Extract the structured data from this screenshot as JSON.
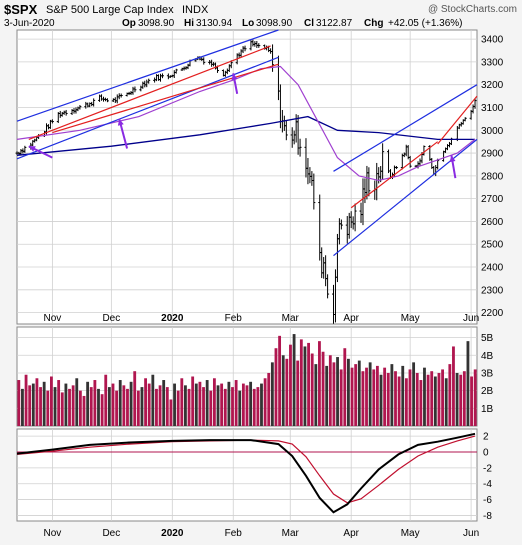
{
  "header": {
    "symbol": "$SPX",
    "name": "S&P 500 Large Cap Index",
    "exchange": "INDX",
    "credit": "@ StockCharts.com",
    "date": "3-Jun-2020",
    "open_label": "Op",
    "open_value": "3098.90",
    "high_label": "Hi",
    "high_value": "3130.94",
    "low_label": "Lo",
    "low_value": "3098.90",
    "close_label": "Cl",
    "close_value": "3122.87",
    "change_label": "Chg",
    "change_value": "+42.05 (+1.36%)"
  },
  "chart_data": [
    {
      "type": "line",
      "panel": "price",
      "x_ticks": [
        "Nov",
        "Dec",
        "2020",
        "Feb",
        "Mar",
        "Apr",
        "May",
        "Jun"
      ],
      "y_ticks": [
        2200,
        2300,
        2400,
        2500,
        2600,
        2700,
        2800,
        2900,
        3000,
        3100,
        3200,
        3300,
        3400
      ],
      "ylim": [
        2150,
        3440
      ],
      "close_series": {
        "dates": [
          "2019-10-14",
          "2019-10-21",
          "2019-10-28",
          "2019-11-04",
          "2019-11-11",
          "2019-11-18",
          "2019-11-25",
          "2019-12-02",
          "2019-12-09",
          "2019-12-16",
          "2019-12-23",
          "2019-12-30",
          "2020-01-06",
          "2020-01-13",
          "2020-01-20",
          "2020-01-27",
          "2020-02-03",
          "2020-02-10",
          "2020-02-17",
          "2020-02-20",
          "2020-02-24",
          "2020-02-28",
          "2020-03-03",
          "2020-03-06",
          "2020-03-10",
          "2020-03-13",
          "2020-03-16",
          "2020-03-18",
          "2020-03-20",
          "2020-03-23",
          "2020-03-26",
          "2020-03-31",
          "2020-04-06",
          "2020-04-09",
          "2020-04-13",
          "2020-04-17",
          "2020-04-21",
          "2020-04-24",
          "2020-04-29",
          "2020-05-01",
          "2020-05-06",
          "2020-05-08",
          "2020-05-13",
          "2020-05-15",
          "2020-05-19",
          "2020-05-22",
          "2020-05-27",
          "2020-05-29",
          "2020-06-03"
        ],
        "values": [
          2900,
          2940,
          3000,
          3070,
          3090,
          3110,
          3140,
          3130,
          3160,
          3200,
          3230,
          3240,
          3270,
          3320,
          3300,
          3250,
          3330,
          3380,
          3360,
          3340,
          3130,
          2960,
          3000,
          2960,
          2830,
          2700,
          2420,
          2420,
          2300,
          2240,
          2600,
          2580,
          2660,
          2780,
          2780,
          2860,
          2800,
          2840,
          2920,
          2840,
          2860,
          2930,
          2820,
          2860,
          2920,
          2960,
          3040,
          3050,
          3120
        ]
      },
      "ma50": {
        "dates": [
          "2019-10-14",
          "2019-11-15",
          "2019-12-15",
          "2020-01-15",
          "2020-02-01",
          "2020-02-15",
          "2020-02-25",
          "2020-03-05",
          "2020-03-15",
          "2020-03-25",
          "2020-04-05",
          "2020-04-15",
          "2020-04-25",
          "2020-05-05",
          "2020-05-15",
          "2020-05-25",
          "2020-06-03"
        ],
        "values": [
          2960,
          3000,
          3060,
          3170,
          3220,
          3270,
          3280,
          3200,
          3040,
          2880,
          2800,
          2780,
          2800,
          2840,
          2870,
          2900,
          2960
        ]
      },
      "ma200": {
        "dates": [
          "2019-10-14",
          "2019-12-01",
          "2020-01-15",
          "2020-02-20",
          "2020-03-10",
          "2020-03-25",
          "2020-04-15",
          "2020-05-15",
          "2020-06-03"
        ],
        "values": [
          2890,
          2930,
          2980,
          3030,
          3060,
          3000,
          2990,
          2960,
          2960
        ]
      },
      "annotations": [
        "blue channel lines",
        "red trend lines",
        "purple arrows"
      ]
    },
    {
      "type": "bar",
      "panel": "volume",
      "y_ticks": [
        "1B",
        "2B",
        "3B",
        "4B",
        "5B"
      ],
      "ylim": [
        0,
        5.6
      ],
      "values": [
        2.6,
        2.1,
        2.9,
        2.3,
        2.4,
        2.7,
        2.2,
        2.5,
        2.0,
        2.8,
        2.2,
        2.6,
        1.9,
        2.4,
        2.1,
        2.3,
        2.7,
        2.0,
        1.7,
        2.5,
        2.2,
        2.6,
        2.1,
        1.8,
        2.9,
        2.2,
        2.4,
        2.0,
        2.6,
        2.3,
        2.1,
        2.5,
        3.1,
        2.0,
        2.2,
        2.7,
        2.4,
        2.9,
        2.1,
        2.3,
        2.6,
        2.2,
        1.5,
        2.4,
        2.0,
        2.7,
        2.3,
        2.1,
        2.8,
        2.4,
        2.5,
        2.2,
        2.6,
        2.0,
        2.7,
        2.3,
        2.4,
        2.1,
        2.5,
        2.2,
        2.6,
        2.0,
        2.4,
        2.3,
        2.5,
        2.1,
        2.2,
        2.4,
        2.7,
        3.0,
        3.6,
        4.4,
        5.1,
        4.0,
        3.8,
        4.6,
        5.2,
        3.7,
        4.9,
        4.5,
        4.7,
        4.1,
        3.5,
        4.8,
        4.2,
        3.4,
        4.0,
        3.6,
        3.9,
        3.2,
        4.4,
        3.8,
        3.3,
        3.5,
        3.7,
        3.1,
        3.3,
        3.6,
        3.2,
        3.4,
        2.9,
        3.3,
        3.0,
        3.5,
        3.1,
        2.8,
        3.4,
        2.7,
        3.2,
        3.6,
        3.0,
        2.6,
        3.3,
        2.9,
        3.1,
        2.8,
        3.0,
        3.2,
        2.7,
        3.5,
        4.5,
        3.0,
        2.9,
        3.1,
        4.8,
        2.8,
        3.2
      ]
    },
    {
      "type": "line",
      "panel": "macd",
      "y_ticks": [
        -8,
        -6,
        -4,
        -2,
        0,
        2
      ],
      "ylim": [
        -8.7,
        2.9
      ],
      "macd_series": {
        "dates": [
          "2019-10-14",
          "2019-11-01",
          "2019-11-20",
          "2019-12-10",
          "2020-01-01",
          "2020-01-20",
          "2020-02-10",
          "2020-02-24",
          "2020-03-02",
          "2020-03-09",
          "2020-03-16",
          "2020-03-23",
          "2020-03-30",
          "2020-04-06",
          "2020-04-15",
          "2020-04-25",
          "2020-05-05",
          "2020-05-15",
          "2020-05-25",
          "2020-06-03"
        ],
        "values": [
          -0.2,
          0.3,
          0.9,
          1.2,
          1.4,
          1.5,
          1.5,
          1.0,
          -0.5,
          -3.0,
          -5.8,
          -7.6,
          -6.6,
          -4.6,
          -2.2,
          -0.3,
          0.9,
          1.3,
          1.8,
          2.3
        ]
      },
      "signal_series": {
        "dates": [
          "2019-10-14",
          "2019-11-01",
          "2019-11-20",
          "2019-12-10",
          "2020-01-01",
          "2020-01-20",
          "2020-02-10",
          "2020-02-24",
          "2020-03-02",
          "2020-03-09",
          "2020-03-16",
          "2020-03-23",
          "2020-03-30",
          "2020-04-06",
          "2020-04-15",
          "2020-04-25",
          "2020-05-05",
          "2020-05-15",
          "2020-05-25",
          "2020-06-03"
        ],
        "values": [
          -0.3,
          0.1,
          0.6,
          1.0,
          1.3,
          1.4,
          1.5,
          1.4,
          1.0,
          -0.6,
          -3.0,
          -5.3,
          -6.4,
          -5.9,
          -4.2,
          -2.2,
          -0.5,
          0.6,
          1.4,
          2.0
        ]
      }
    }
  ],
  "colors": {
    "background": "#f4f4f4",
    "panel": "#ffffff",
    "grid": "#d0d0d0",
    "price_bar": "#000000",
    "ma50": "#a040d0",
    "ma200": "#00008b",
    "channel": "#1f2fe0",
    "trend": "#e32020",
    "arrow": "#8a2be2",
    "vol_up": "#333333",
    "vol_down": "#b0164f",
    "macd": "#000000",
    "signal": "#c0102f",
    "zero": "#b0164f"
  }
}
